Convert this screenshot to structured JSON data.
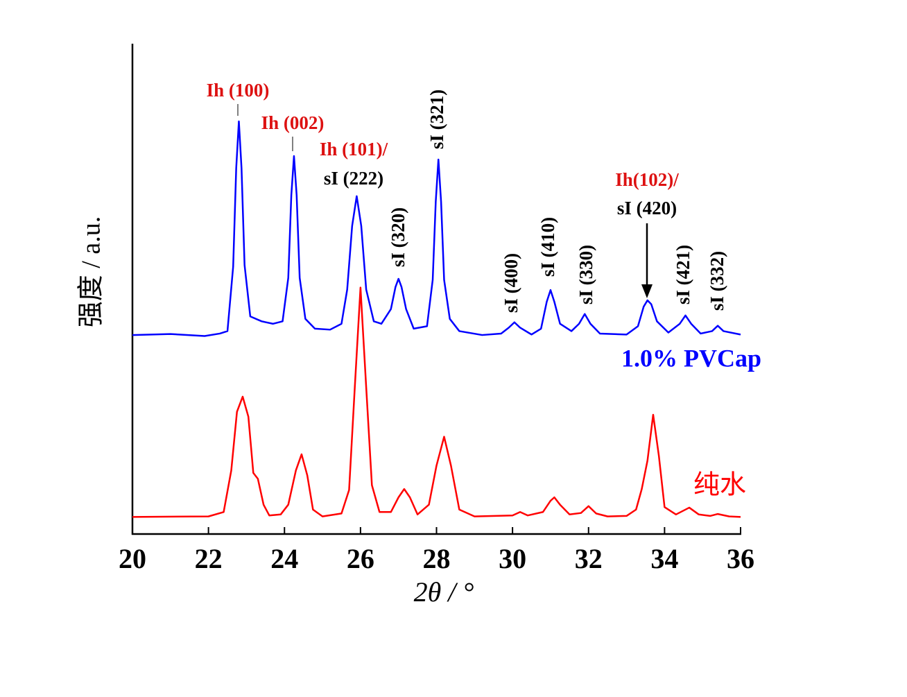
{
  "chart_data": {
    "type": "line",
    "x_label": "2θ / °",
    "y_label": "强度 / a.u.",
    "xlim": [
      20,
      36
    ],
    "xticks": [
      20,
      22,
      24,
      26,
      28,
      30,
      32,
      34,
      36
    ],
    "ylim": [
      0,
      100
    ],
    "series": [
      {
        "name": "1.0% PVCap",
        "color": "#0000ff",
        "x": [
          20,
          21,
          21.9,
          22.3,
          22.5,
          22.65,
          22.73,
          22.8,
          22.87,
          22.95,
          23.1,
          23.4,
          23.7,
          23.95,
          24.1,
          24.18,
          24.25,
          24.32,
          24.4,
          24.55,
          24.8,
          25.2,
          25.5,
          25.65,
          25.78,
          25.9,
          26.02,
          26.15,
          26.35,
          26.55,
          26.8,
          26.92,
          27.0,
          27.08,
          27.2,
          27.4,
          27.75,
          27.9,
          27.98,
          28.05,
          28.12,
          28.2,
          28.35,
          28.6,
          29.2,
          29.7,
          29.9,
          30.05,
          30.2,
          30.5,
          30.75,
          30.9,
          31.0,
          31.1,
          31.25,
          31.55,
          31.75,
          31.9,
          32.05,
          32.3,
          33.0,
          33.3,
          33.45,
          33.55,
          33.65,
          33.8,
          34.1,
          34.4,
          34.55,
          34.7,
          34.95,
          35.25,
          35.4,
          35.55,
          36
        ],
        "values": [
          40.7,
          40.9,
          40.5,
          41.0,
          41.5,
          54.7,
          74.8,
          84.4,
          74.8,
          55.0,
          44.5,
          43.5,
          43.0,
          43.5,
          52.4,
          69.3,
          77.3,
          69.3,
          52.4,
          44.0,
          42.0,
          41.8,
          43.0,
          50.0,
          63.0,
          69.1,
          63.0,
          50.0,
          43.5,
          43.0,
          46.0,
          50.5,
          52.2,
          50.5,
          46.0,
          42.0,
          42.5,
          52.0,
          68.0,
          76.6,
          68.0,
          52.0,
          44.0,
          41.5,
          40.7,
          41.0,
          42.2,
          43.3,
          42.2,
          40.8,
          42.0,
          47.5,
          49.9,
          47.5,
          43.0,
          41.5,
          43.0,
          45.0,
          43.0,
          41.0,
          40.8,
          42.5,
          46.5,
          47.8,
          47.0,
          43.5,
          41.2,
          43.0,
          44.7,
          43.0,
          41.0,
          41.5,
          42.6,
          41.5,
          40.8
        ]
      },
      {
        "name": "纯水",
        "color": "#ff0000",
        "x": [
          20,
          22.0,
          22.4,
          22.6,
          22.75,
          22.9,
          23.05,
          23.18,
          23.3,
          23.45,
          23.6,
          23.9,
          24.1,
          24.3,
          24.45,
          24.6,
          24.75,
          25.0,
          25.5,
          25.7,
          25.85,
          26.0,
          26.15,
          26.3,
          26.5,
          26.8,
          27.0,
          27.15,
          27.3,
          27.5,
          27.8,
          28.0,
          28.2,
          28.38,
          28.6,
          29.0,
          30.0,
          30.2,
          30.4,
          30.8,
          31.0,
          31.1,
          31.25,
          31.5,
          31.8,
          32.0,
          32.2,
          32.5,
          33.0,
          33.25,
          33.4,
          33.55,
          33.7,
          33.85,
          34.0,
          34.3,
          34.65,
          34.9,
          35.2,
          35.4,
          35.7,
          36
        ],
        "values": [
          3.5,
          3.6,
          4.5,
          13,
          25,
          28.1,
          24,
          12.5,
          11.3,
          6,
          3.8,
          4,
          6,
          13,
          16.3,
          12,
          5,
          3.6,
          4.2,
          9,
          30,
          50.4,
          30,
          10,
          4.5,
          4.5,
          7.5,
          9.2,
          7.5,
          4,
          6,
          14,
          19.9,
          14,
          5,
          3.6,
          3.8,
          4.5,
          3.8,
          4.5,
          6.8,
          7.5,
          6,
          4,
          4.3,
          5.7,
          4.2,
          3.6,
          3.7,
          5,
          9.2,
          15,
          24.4,
          16,
          5.5,
          4,
          5.4,
          4,
          3.7,
          4.1,
          3.6,
          3.5
        ]
      }
    ],
    "annotations": [
      {
        "text": "Ih (100)",
        "color": "#dd1111"
      },
      {
        "text": "Ih (002)",
        "color": "#dd1111"
      },
      {
        "text": "Ih (101)/",
        "color": "#dd1111"
      },
      {
        "text": "sI (222)",
        "color": "#000000"
      },
      {
        "text": "sI (321)",
        "color": "#000000"
      },
      {
        "text": "sI (320)",
        "color": "#000000"
      },
      {
        "text": "sI (400)",
        "color": "#000000"
      },
      {
        "text": "sI (410)",
        "color": "#000000"
      },
      {
        "text": "sI (330)",
        "color": "#000000"
      },
      {
        "text": "Ih(102)/",
        "color": "#dd1111"
      },
      {
        "text": "sI (420)",
        "color": "#000000"
      },
      {
        "text": "sI (421)",
        "color": "#000000"
      },
      {
        "text": "sI (332)",
        "color": "#000000"
      }
    ]
  }
}
